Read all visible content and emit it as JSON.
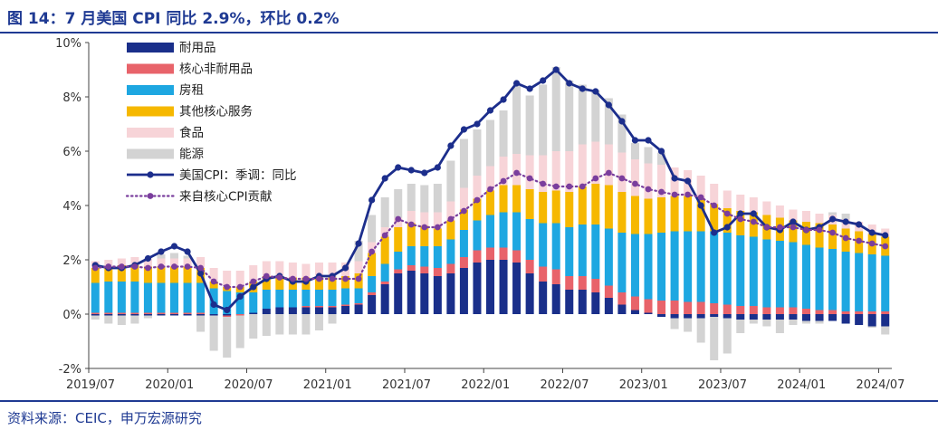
{
  "title": "图 14：7 月美国 CPI 同比 2.9%，环比 0.2%",
  "source": "资料来源：CEIC，申万宏源研究",
  "colors": {
    "durable": "#1a2f8a",
    "core_nondurable": "#e8636a",
    "shelter": "#1ea7e1",
    "other_core": "#f6b800",
    "food": "#f7d4d8",
    "energy": "#d3d3d3",
    "cpi_line": "#1c2e8c",
    "core_line": "#7a3e9d",
    "axis": "#444444"
  },
  "chart_data": {
    "type": "bar",
    "stacked": true,
    "grid": false,
    "legend_position": "top-left",
    "ylim": [
      -2,
      10
    ],
    "yticks": [
      "-2%",
      "0%",
      "2%",
      "4%",
      "6%",
      "8%",
      "10%"
    ],
    "xtick_labels": [
      "2019/07",
      "2020/01",
      "2020/07",
      "2021/01",
      "2021/07",
      "2022/01",
      "2022/07",
      "2023/01",
      "2023/07",
      "2024/01",
      "2024/07"
    ],
    "categories": [
      "2019/07",
      "2019/08",
      "2019/09",
      "2019/10",
      "2019/11",
      "2019/12",
      "2020/01",
      "2020/02",
      "2020/03",
      "2020/04",
      "2020/05",
      "2020/06",
      "2020/07",
      "2020/08",
      "2020/09",
      "2020/10",
      "2020/11",
      "2020/12",
      "2021/01",
      "2021/02",
      "2021/03",
      "2021/04",
      "2021/05",
      "2021/06",
      "2021/07",
      "2021/08",
      "2021/09",
      "2021/10",
      "2021/11",
      "2021/12",
      "2022/01",
      "2022/02",
      "2022/03",
      "2022/04",
      "2022/05",
      "2022/06",
      "2022/07",
      "2022/08",
      "2022/09",
      "2022/10",
      "2022/11",
      "2022/12",
      "2023/01",
      "2023/02",
      "2023/03",
      "2023/04",
      "2023/05",
      "2023/06",
      "2023/07",
      "2023/08",
      "2023/09",
      "2023/10",
      "2023/11",
      "2023/12",
      "2024/01",
      "2024/02",
      "2024/03",
      "2024/04",
      "2024/05",
      "2024/06",
      "2024/07"
    ],
    "series": [
      {
        "name": "耐用品",
        "kind": "bar",
        "color_key": "durable",
        "values": [
          -0.05,
          -0.05,
          -0.05,
          -0.05,
          -0.05,
          -0.05,
          -0.05,
          -0.05,
          -0.05,
          -0.05,
          -0.05,
          0,
          0.05,
          0.2,
          0.25,
          0.25,
          0.25,
          0.25,
          0.25,
          0.3,
          0.35,
          0.7,
          1.1,
          1.5,
          1.6,
          1.5,
          1.4,
          1.5,
          1.7,
          1.9,
          2.0,
          2.0,
          1.9,
          1.5,
          1.2,
          1.1,
          0.9,
          0.9,
          0.8,
          0.6,
          0.35,
          0.15,
          0.05,
          -0.1,
          -0.15,
          -0.15,
          -0.15,
          -0.1,
          -0.15,
          -0.2,
          -0.2,
          -0.2,
          -0.2,
          -0.2,
          -0.25,
          -0.25,
          -0.25,
          -0.35,
          -0.4,
          -0.45,
          -0.45
        ]
      },
      {
        "name": "核心非耐用品",
        "kind": "bar",
        "color_key": "core_nondurable",
        "values": [
          0.05,
          0.05,
          0.05,
          0.05,
          0.05,
          0.05,
          0.05,
          0.05,
          0.05,
          0.0,
          -0.05,
          -0.05,
          0.0,
          0.0,
          0.0,
          0.0,
          0.05,
          0.05,
          0.05,
          0.05,
          0.05,
          0.1,
          0.1,
          0.15,
          0.2,
          0.25,
          0.3,
          0.35,
          0.4,
          0.45,
          0.45,
          0.45,
          0.45,
          0.5,
          0.55,
          0.55,
          0.5,
          0.5,
          0.5,
          0.45,
          0.45,
          0.5,
          0.5,
          0.5,
          0.5,
          0.45,
          0.45,
          0.4,
          0.35,
          0.3,
          0.3,
          0.25,
          0.25,
          0.25,
          0.2,
          0.15,
          0.15,
          0.1,
          0.1,
          0.1,
          0.1
        ]
      },
      {
        "name": "房租",
        "kind": "bar",
        "color_key": "shelter",
        "values": [
          1.1,
          1.15,
          1.15,
          1.15,
          1.1,
          1.1,
          1.1,
          1.1,
          1.1,
          0.95,
          0.85,
          0.8,
          0.75,
          0.7,
          0.65,
          0.65,
          0.6,
          0.6,
          0.6,
          0.6,
          0.55,
          0.6,
          0.65,
          0.65,
          0.7,
          0.75,
          0.8,
          0.9,
          1.0,
          1.1,
          1.2,
          1.3,
          1.4,
          1.5,
          1.6,
          1.7,
          1.8,
          1.9,
          2.0,
          2.1,
          2.2,
          2.3,
          2.4,
          2.5,
          2.55,
          2.6,
          2.6,
          2.65,
          2.65,
          2.6,
          2.55,
          2.5,
          2.45,
          2.4,
          2.35,
          2.3,
          2.25,
          2.2,
          2.15,
          2.1,
          2.05
        ]
      },
      {
        "name": "其他核心服务",
        "kind": "bar",
        "color_key": "other_core",
        "values": [
          0.55,
          0.55,
          0.6,
          0.6,
          0.6,
          0.6,
          0.6,
          0.6,
          0.55,
          0.25,
          0.15,
          0.2,
          0.4,
          0.5,
          0.5,
          0.45,
          0.45,
          0.45,
          0.45,
          0.45,
          0.55,
          0.85,
          1.0,
          0.9,
          0.85,
          0.75,
          0.65,
          0.7,
          0.75,
          0.8,
          0.9,
          1.0,
          1.0,
          1.1,
          1.15,
          1.2,
          1.3,
          1.4,
          1.5,
          1.6,
          1.5,
          1.4,
          1.3,
          1.3,
          1.3,
          1.3,
          1.2,
          1.0,
          0.9,
          0.9,
          0.9,
          0.9,
          0.85,
          0.8,
          0.85,
          0.9,
          0.9,
          0.85,
          0.8,
          0.75,
          0.7
        ]
      },
      {
        "name": "食品",
        "kind": "bar",
        "color_key": "food",
        "values": [
          0.25,
          0.25,
          0.25,
          0.3,
          0.3,
          0.3,
          0.3,
          0.3,
          0.4,
          0.5,
          0.6,
          0.6,
          0.6,
          0.55,
          0.55,
          0.55,
          0.5,
          0.55,
          0.55,
          0.5,
          0.45,
          0.4,
          0.35,
          0.35,
          0.45,
          0.5,
          0.6,
          0.7,
          0.8,
          0.85,
          0.9,
          1.05,
          1.15,
          1.25,
          1.35,
          1.45,
          1.5,
          1.55,
          1.55,
          1.5,
          1.45,
          1.35,
          1.3,
          1.2,
          1.05,
          0.95,
          0.85,
          0.75,
          0.65,
          0.6,
          0.55,
          0.5,
          0.45,
          0.4,
          0.4,
          0.35,
          0.35,
          0.35,
          0.35,
          0.35,
          0.3
        ]
      },
      {
        "name": "能源",
        "kind": "bar",
        "color_key": "energy",
        "values": [
          -0.15,
          -0.3,
          -0.35,
          -0.3,
          -0.1,
          0.15,
          0.2,
          0.1,
          -0.6,
          -1.3,
          -1.5,
          -1.2,
          -0.9,
          -0.8,
          -0.75,
          -0.75,
          -0.75,
          -0.6,
          -0.35,
          0.0,
          0.75,
          1.0,
          1.1,
          1.05,
          1.0,
          1.0,
          1.05,
          1.5,
          1.8,
          1.7,
          1.7,
          1.7,
          2.5,
          2.2,
          2.6,
          3.1,
          2.6,
          2.2,
          1.9,
          1.7,
          1.4,
          0.6,
          0.6,
          0.45,
          -0.4,
          -0.5,
          -0.9,
          -1.6,
          -1.3,
          -0.5,
          -0.15,
          -0.25,
          -0.5,
          -0.2,
          -0.1,
          -0.1,
          0.1,
          0.2,
          0.0,
          -0.05,
          -0.3
        ]
      },
      {
        "name": "美国CPI：季调：同比",
        "kind": "line",
        "color_key": "cpi_line",
        "values": [
          1.8,
          1.7,
          1.7,
          1.8,
          2.05,
          2.3,
          2.5,
          2.3,
          1.5,
          0.35,
          0.15,
          0.65,
          1.0,
          1.3,
          1.4,
          1.2,
          1.2,
          1.4,
          1.4,
          1.7,
          2.6,
          4.2,
          5.0,
          5.4,
          5.3,
          5.2,
          5.4,
          6.2,
          6.8,
          7.0,
          7.5,
          7.9,
          8.5,
          8.3,
          8.6,
          9.0,
          8.5,
          8.3,
          8.2,
          7.7,
          7.1,
          6.4,
          6.4,
          6.0,
          5.0,
          4.9,
          4.0,
          3.0,
          3.2,
          3.7,
          3.7,
          3.2,
          3.1,
          3.4,
          3.1,
          3.2,
          3.5,
          3.4,
          3.3,
          3.0,
          2.9
        ]
      },
      {
        "name": "来自核心CPI贡献",
        "kind": "line_dotted",
        "color_key": "core_line",
        "values": [
          1.7,
          1.75,
          1.75,
          1.75,
          1.7,
          1.75,
          1.75,
          1.75,
          1.7,
          1.2,
          1.0,
          1.0,
          1.2,
          1.4,
          1.35,
          1.3,
          1.3,
          1.3,
          1.3,
          1.3,
          1.3,
          2.3,
          2.9,
          3.5,
          3.3,
          3.2,
          3.2,
          3.5,
          3.8,
          4.2,
          4.6,
          4.9,
          5.2,
          5.0,
          4.8,
          4.7,
          4.7,
          4.7,
          5.0,
          5.2,
          5.0,
          4.8,
          4.6,
          4.5,
          4.4,
          4.4,
          4.3,
          4.0,
          3.7,
          3.5,
          3.4,
          3.2,
          3.2,
          3.2,
          3.1,
          3.1,
          3.0,
          2.8,
          2.7,
          2.6,
          2.5
        ]
      }
    ]
  }
}
